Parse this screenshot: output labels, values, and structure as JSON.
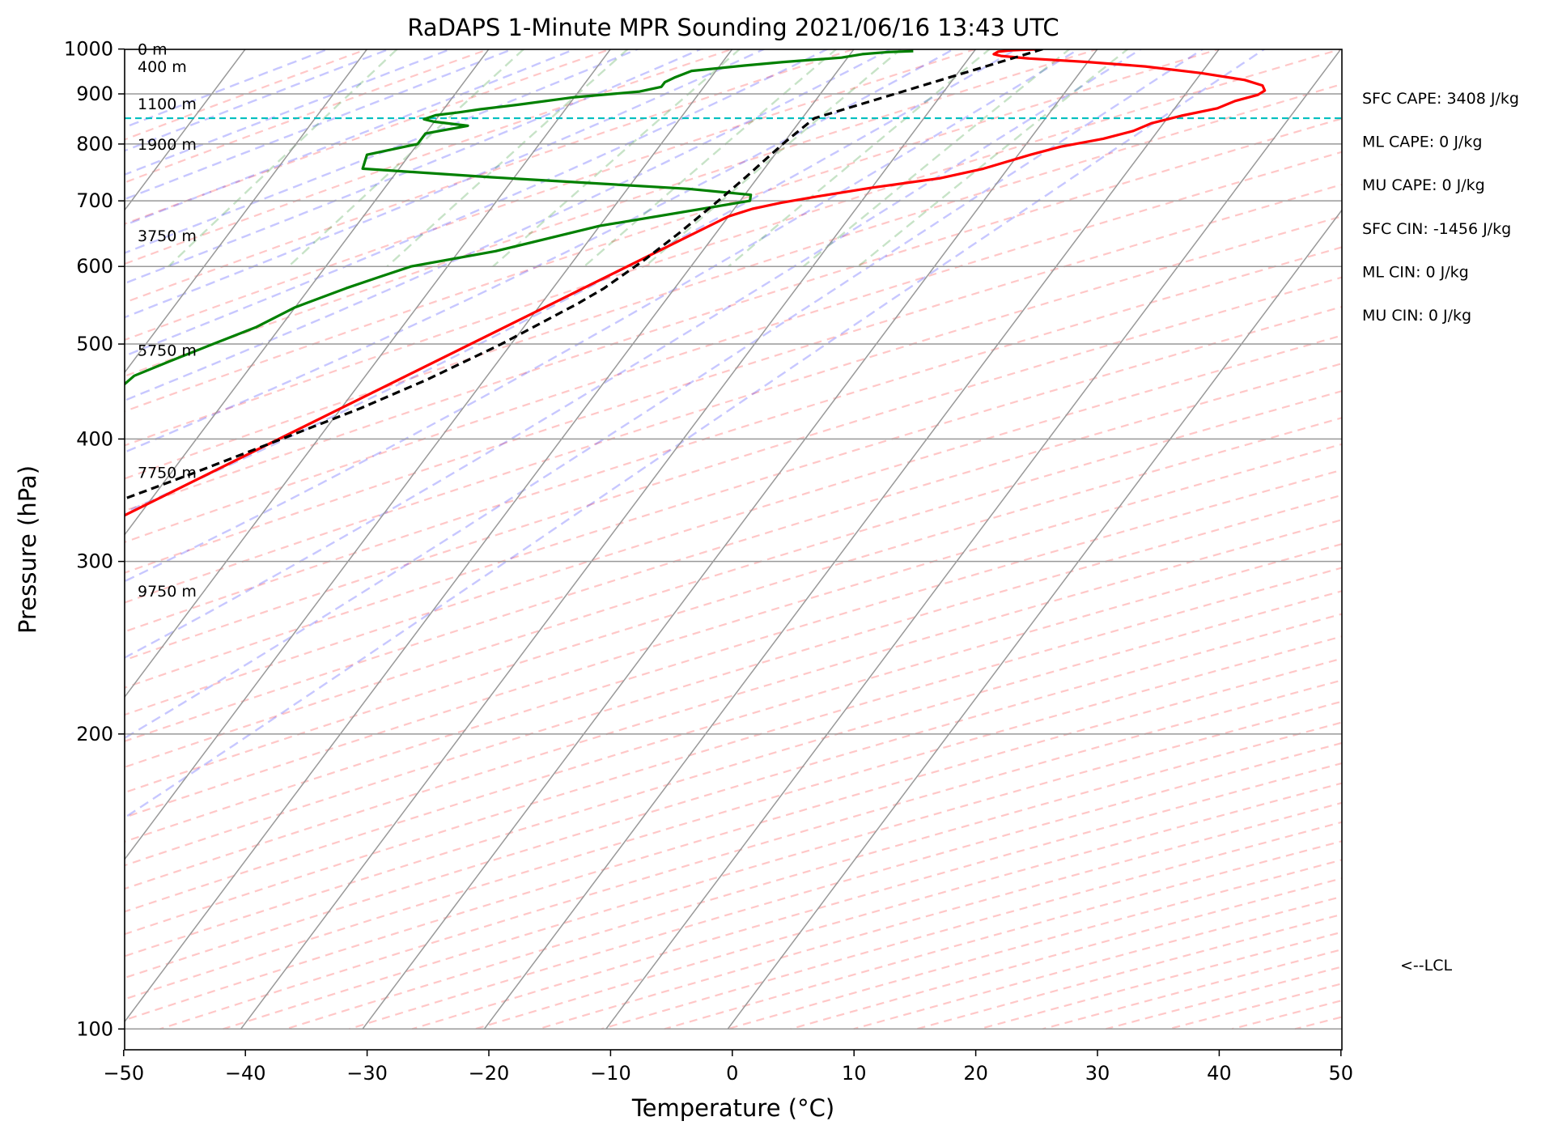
{
  "chart_data": {
    "type": "line",
    "title": "RaDAPS 1-Minute MPR Sounding 2021/06/16 13:43 UTC",
    "xlabel": "Temperature (°C)",
    "ylabel": "Pressure (hPa)",
    "xlim": [
      -50,
      50
    ],
    "ylim": [
      1050,
      100
    ],
    "y_scale": "log",
    "grid": true,
    "skew": true,
    "x_ticks": [
      -50,
      -40,
      -30,
      -20,
      -10,
      0,
      10,
      20,
      30,
      40,
      50
    ],
    "x_tick_labels": [
      "−50",
      "−40",
      "−30",
      "−20",
      "−10",
      "0",
      "10",
      "20",
      "30",
      "40",
      "50"
    ],
    "y_ticks": [
      100,
      200,
      300,
      400,
      500,
      600,
      700,
      800,
      900,
      1000
    ],
    "y_tick_labels": [
      "100",
      "200",
      "300",
      "400",
      "500",
      "600",
      "700",
      "800",
      "900",
      "1000"
    ],
    "series": [
      {
        "role": "temperature",
        "color": "#ff0000",
        "points": [
          [
            1000,
            25.5
          ],
          [
            997,
            23.0
          ],
          [
            994,
            22.0
          ],
          [
            988,
            21.8
          ],
          [
            984,
            22.5
          ],
          [
            978,
            25.0
          ],
          [
            970,
            30.0
          ],
          [
            960,
            35.0
          ],
          [
            945,
            40.0
          ],
          [
            930,
            44.0
          ],
          [
            918,
            45.8
          ],
          [
            907,
            46.3
          ],
          [
            898,
            46.0
          ],
          [
            885,
            44.5
          ],
          [
            870,
            43.5
          ],
          [
            855,
            41.0
          ],
          [
            840,
            39.0
          ],
          [
            825,
            38.0
          ],
          [
            810,
            36.0
          ],
          [
            795,
            33.0
          ],
          [
            780,
            31.0
          ],
          [
            755,
            28.0
          ],
          [
            738,
            25.0
          ],
          [
            722,
            20.0
          ],
          [
            707,
            16.0
          ],
          [
            697,
            13.5
          ],
          [
            687,
            11.5
          ],
          [
            675,
            10.0
          ],
          [
            300,
            -26.0
          ],
          [
            290,
            -26.2
          ],
          [
            282,
            -27.5
          ],
          [
            275,
            -30.0
          ],
          [
            268,
            -31.5
          ],
          [
            262,
            -33.0
          ]
        ]
      },
      {
        "role": "dewpoint",
        "color": "#008000",
        "points": [
          [
            995,
            15.0
          ],
          [
            993,
            13.0
          ],
          [
            988,
            11.0
          ],
          [
            980,
            9.5
          ],
          [
            970,
            5.0
          ],
          [
            962,
            2.0
          ],
          [
            950,
            -2.0
          ],
          [
            935,
            -3.0
          ],
          [
            925,
            -3.5
          ],
          [
            915,
            -3.5
          ],
          [
            905,
            -5.0
          ],
          [
            893,
            -10.0
          ],
          [
            878,
            -14.0
          ],
          [
            868,
            -17.0
          ],
          [
            862,
            -18.5
          ],
          [
            856,
            -20.3
          ],
          [
            848,
            -21.0
          ],
          [
            843,
            -20.0
          ],
          [
            835,
            -17.0
          ],
          [
            820,
            -20.0
          ],
          [
            800,
            -20.0
          ],
          [
            780,
            -23.5
          ],
          [
            755,
            -23.0
          ],
          [
            740,
            -12.0
          ],
          [
            720,
            5.0
          ],
          [
            710,
            10.5
          ],
          [
            700,
            10.8
          ],
          [
            660,
            0.0
          ],
          [
            622,
            -7.0
          ],
          [
            600,
            -13.0
          ],
          [
            585,
            -15.0
          ],
          [
            570,
            -17.0
          ],
          [
            545,
            -20.0
          ],
          [
            520,
            -22.0
          ],
          [
            500,
            -24.5
          ],
          [
            480,
            -27.0
          ],
          [
            464,
            -29.0
          ],
          [
            448,
            -29.5
          ],
          [
            433,
            -29.7
          ],
          [
            415,
            -30.0
          ],
          [
            398,
            -31.5
          ],
          [
            385,
            -33.0
          ],
          [
            372,
            -32.0
          ],
          [
            360,
            -34.0
          ],
          [
            345,
            -36.0
          ],
          [
            335,
            -36.0
          ],
          [
            320,
            -36.0
          ],
          [
            305,
            -35.5
          ],
          [
            298,
            -41.5
          ],
          [
            292,
            -55.0
          ],
          [
            283,
            -82.0
          ],
          [
            280,
            -86.0
          ]
        ]
      },
      {
        "role": "parcel",
        "color": "#000000",
        "points": [
          [
            1000,
            25.5
          ],
          [
            985,
            24.2
          ],
          [
            970,
            22.8
          ],
          [
            958,
            21.7
          ],
          [
            850,
            11.0
          ],
          [
            820,
            10.4
          ],
          [
            800,
            10.0
          ],
          [
            740,
            9.0
          ],
          [
            700,
            8.2
          ],
          [
            650,
            7.0
          ],
          [
            610,
            5.8
          ],
          [
            570,
            4.2
          ],
          [
            550,
            3.0
          ],
          [
            500,
            -0.8
          ],
          [
            460,
            -4.7
          ],
          [
            430,
            -8.4
          ],
          [
            400,
            -13.0
          ],
          [
            370,
            -18.0
          ],
          [
            340,
            -23.7
          ],
          [
            310,
            -30.2
          ],
          [
            285,
            -36.5
          ],
          [
            262,
            -43.0
          ]
        ]
      }
    ],
    "lcl": {
      "pressure": 850,
      "label": "<--LCL",
      "color": "#00bfbf"
    },
    "height_labels": [
      {
        "pressure": 1000,
        "text": "0 m"
      },
      {
        "pressure": 960,
        "text": "400 m"
      },
      {
        "pressure": 880,
        "text": "1100 m"
      },
      {
        "pressure": 800,
        "text": "1900 m"
      },
      {
        "pressure": 645,
        "text": "3750 m"
      },
      {
        "pressure": 493,
        "text": "5750 m"
      },
      {
        "pressure": 370,
        "text": "7750 m"
      },
      {
        "pressure": 280,
        "text": "9750 m"
      }
    ],
    "stats": [
      "SFC CAPE: 3408 J/kg",
      "ML CAPE: 0 J/kg",
      "MU CAPE: 0 J/kg",
      "SFC CIN: -1456 J/kg",
      "ML CIN: 0 J/kg",
      "MU CIN: 0 J/kg"
    ]
  }
}
